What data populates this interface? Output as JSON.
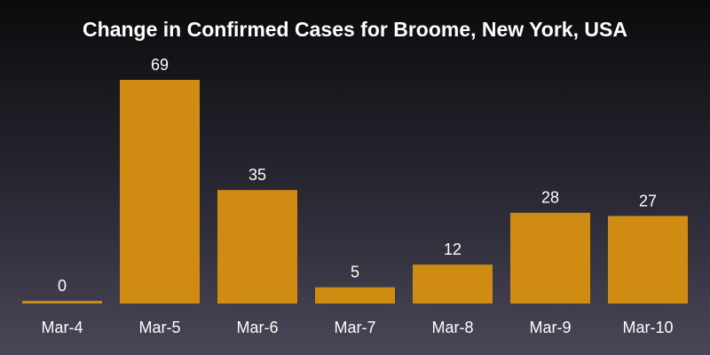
{
  "chart_data": {
    "type": "bar",
    "title": "Change in Confirmed Cases for Broome, New York, USA",
    "categories": [
      "Mar-4",
      "Mar-5",
      "Mar-6",
      "Mar-7",
      "Mar-8",
      "Mar-9",
      "Mar-10"
    ],
    "values": [
      0,
      69,
      35,
      5,
      12,
      28,
      27
    ],
    "xlabel": "",
    "ylabel": "",
    "ylim": [
      0,
      69
    ],
    "grid": false,
    "bar_color": "#d08b12",
    "data_labels": true
  }
}
